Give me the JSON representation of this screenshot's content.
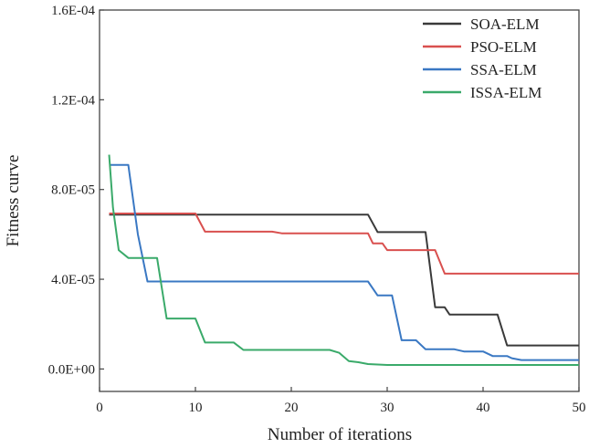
{
  "chart_data": {
    "type": "line",
    "title": "",
    "xlabel": "Number of iterations",
    "ylabel": "Fitness curve",
    "xlim": [
      0,
      50
    ],
    "ylim": [
      -1e-05,
      0.00016
    ],
    "x_ticks": [
      0,
      10,
      20,
      30,
      40,
      50
    ],
    "x_tick_labels": [
      "0",
      "10",
      "20",
      "30",
      "40",
      "50"
    ],
    "y_ticks": [
      0,
      4e-05,
      8e-05,
      0.00012,
      0.00016
    ],
    "y_tick_labels": [
      "0.0E+00",
      "4.0E-05",
      "8.0E-05",
      "1.2E-04",
      "1.6E-04"
    ],
    "grid": false,
    "legend_position": "top-right",
    "series": [
      {
        "name": "SOA-ELM",
        "color": "#3a3a3a",
        "points": [
          [
            1,
            6.88e-05
          ],
          [
            28,
            6.88e-05
          ],
          [
            29,
            6.1e-05
          ],
          [
            34,
            6.1e-05
          ],
          [
            35,
            2.75e-05
          ],
          [
            36,
            2.75e-05
          ],
          [
            36.5,
            2.43e-05
          ],
          [
            41.5,
            2.43e-05
          ],
          [
            42.5,
            1.05e-05
          ],
          [
            50,
            1.05e-05
          ]
        ]
      },
      {
        "name": "PSO-ELM",
        "color": "#d9504f",
        "points": [
          [
            1,
            6.93e-05
          ],
          [
            10,
            6.93e-05
          ],
          [
            11,
            6.12e-05
          ],
          [
            18,
            6.12e-05
          ],
          [
            19,
            6.05e-05
          ],
          [
            28,
            6.05e-05
          ],
          [
            28.5,
            5.6e-05
          ],
          [
            29.5,
            5.6e-05
          ],
          [
            30,
            5.3e-05
          ],
          [
            35,
            5.3e-05
          ],
          [
            36,
            4.25e-05
          ],
          [
            50,
            4.25e-05
          ]
        ]
      },
      {
        "name": "SSA-ELM",
        "color": "#3a78c3",
        "points": [
          [
            1,
            9.1e-05
          ],
          [
            3,
            9.1e-05
          ],
          [
            4,
            6e-05
          ],
          [
            5,
            3.9e-05
          ],
          [
            28,
            3.9e-05
          ],
          [
            29,
            3.28e-05
          ],
          [
            30.5,
            3.28e-05
          ],
          [
            31.5,
            1.28e-05
          ],
          [
            33,
            1.28e-05
          ],
          [
            34,
            8.8e-06
          ],
          [
            37,
            8.8e-06
          ],
          [
            38,
            7.8e-06
          ],
          [
            40,
            7.8e-06
          ],
          [
            41,
            5.8e-06
          ],
          [
            42.5,
            5.8e-06
          ],
          [
            43,
            4.8e-06
          ],
          [
            44,
            4e-06
          ],
          [
            50,
            4e-06
          ]
        ]
      },
      {
        "name": "ISSA-ELM",
        "color": "#3aaa6a",
        "points": [
          [
            1,
            9.55e-05
          ],
          [
            1.4,
            7.2e-05
          ],
          [
            2,
            5.3e-05
          ],
          [
            3,
            4.95e-05
          ],
          [
            6,
            4.95e-05
          ],
          [
            7,
            2.25e-05
          ],
          [
            10,
            2.25e-05
          ],
          [
            11,
            1.18e-05
          ],
          [
            14,
            1.18e-05
          ],
          [
            15,
            8.5e-06
          ],
          [
            24,
            8.5e-06
          ],
          [
            25,
            7.2e-06
          ],
          [
            26,
            3.5e-06
          ],
          [
            27,
            3e-06
          ],
          [
            28,
            2.2e-06
          ],
          [
            30,
            1.8e-06
          ],
          [
            50,
            1.8e-06
          ]
        ]
      }
    ]
  }
}
